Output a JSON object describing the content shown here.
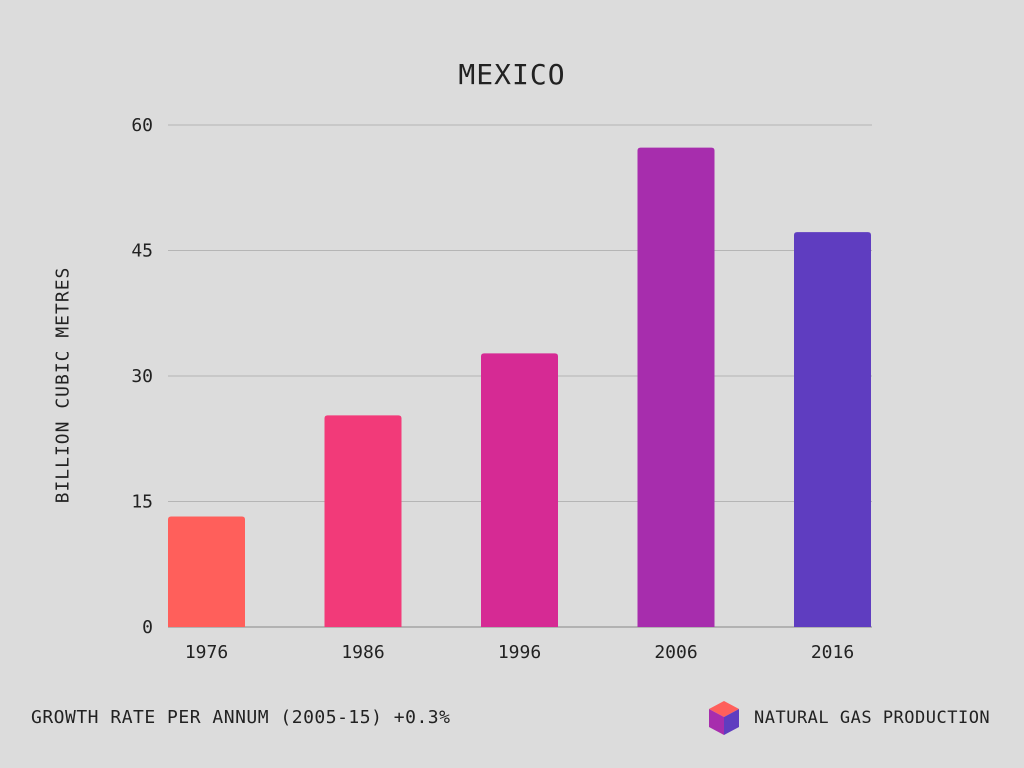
{
  "title": "MEXICO",
  "footer": {
    "growth_text": "GROWTH RATE PER ANNUM (2005-15) +0.3%",
    "legend_label": "NATURAL GAS PRODUCTION",
    "legend_icon": "cube-icon"
  },
  "colors": {
    "background": "#dcdcdc",
    "gridline": "#b5b5b5",
    "axis": "#888888",
    "bars": [
      "#ff5f5b",
      "#f23a79",
      "#d62a94",
      "#a72dad",
      "#5f3dc0"
    ],
    "cube_top": "#ff5f5b",
    "cube_left": "#a72dad",
    "cube_right": "#5f3dc0"
  },
  "chart_data": {
    "type": "bar",
    "title": "MEXICO",
    "xlabel": "",
    "ylabel": "BILLION CUBIC METRES",
    "categories": [
      "1976",
      "1986",
      "1996",
      "2006",
      "2016"
    ],
    "values": [
      13.2,
      25.3,
      32.7,
      57.3,
      47.2
    ],
    "ylim": [
      0,
      60
    ],
    "yticks": [
      0,
      15,
      30,
      45,
      60
    ],
    "grid": true,
    "legend": "bottom-right"
  }
}
